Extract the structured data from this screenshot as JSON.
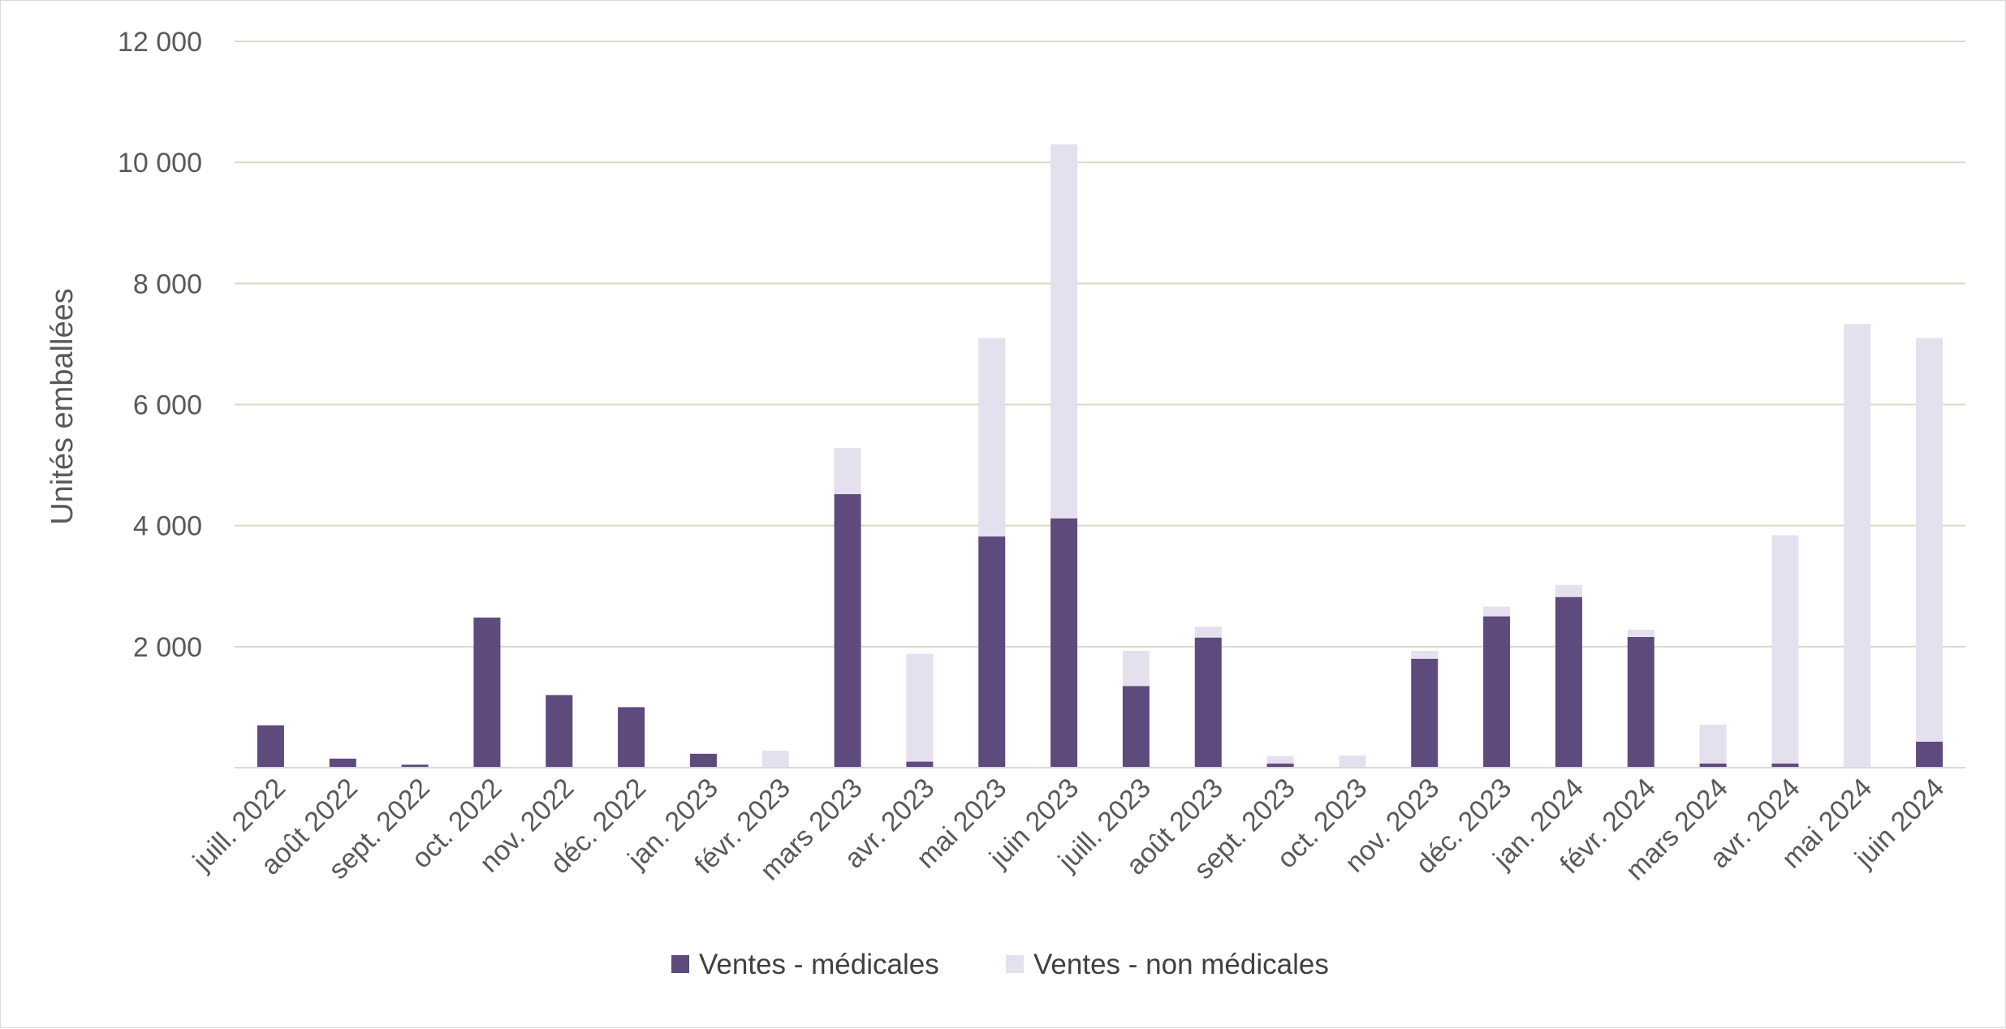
{
  "chart_data": {
    "type": "bar",
    "stacked": true,
    "title": "",
    "xlabel": "",
    "ylabel": "Unités emballées",
    "ylim": [
      0,
      12000
    ],
    "yticks": [
      2000,
      4000,
      6000,
      8000,
      10000,
      12000
    ],
    "ytick_labels": [
      "2 000",
      "4 000",
      "6 000",
      "8 000",
      "10 000",
      "12 000"
    ],
    "grid": true,
    "legend_position": "bottom",
    "categories": [
      "juill. 2022",
      "août 2022",
      "sept. 2022",
      "oct. 2022",
      "nov. 2022",
      "déc. 2022",
      "jan. 2023",
      "févr. 2023",
      "mars 2023",
      "avr. 2023",
      "mai 2023",
      "juin 2023",
      "juill. 2023",
      "août 2023",
      "sept. 2023",
      "oct. 2023",
      "nov. 2023",
      "déc. 2023",
      "jan. 2024",
      "févr. 2024",
      "mars 2024",
      "avr. 2024",
      "mai 2024",
      "juin 2024"
    ],
    "series": [
      {
        "name": "Ventes - médicales",
        "color": "#5e4a7d",
        "values": [
          700,
          150,
          50,
          2480,
          1200,
          1000,
          230,
          0,
          4520,
          100,
          3820,
          4120,
          1350,
          2150,
          70,
          0,
          1800,
          2500,
          2820,
          2160,
          70,
          70,
          0,
          430
        ]
      },
      {
        "name": "Ventes - non médicales",
        "color": "#e4e0ee",
        "values": [
          0,
          0,
          0,
          0,
          0,
          0,
          0,
          280,
          760,
          1780,
          3280,
          6180,
          580,
          180,
          120,
          200,
          130,
          160,
          200,
          120,
          640,
          3770,
          7330,
          6670
        ]
      }
    ]
  }
}
